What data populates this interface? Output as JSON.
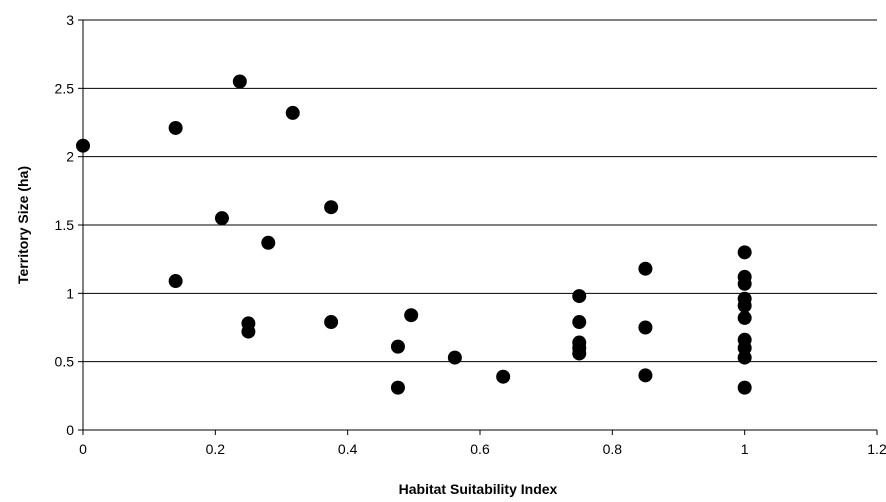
{
  "chart_data": {
    "type": "scatter",
    "title": "",
    "xlabel": "Habitat Suitability Index",
    "ylabel": "Territory Size (ha)",
    "xlim": [
      0,
      1.2
    ],
    "ylim": [
      0,
      3
    ],
    "x_ticks": [
      "0",
      "0.2",
      "0.4",
      "0.6",
      "0.8",
      "1",
      "1.2"
    ],
    "y_ticks": [
      "0",
      "0.5",
      "1",
      "1.5",
      "2",
      "2.5",
      "3"
    ],
    "grid": "horizontal",
    "legend": "none",
    "marker_color": "#000000",
    "points": [
      {
        "x": 0.0,
        "y": 2.08
      },
      {
        "x": 0.14,
        "y": 2.21
      },
      {
        "x": 0.14,
        "y": 1.09
      },
      {
        "x": 0.21,
        "y": 1.55
      },
      {
        "x": 0.237,
        "y": 2.55
      },
      {
        "x": 0.25,
        "y": 0.78
      },
      {
        "x": 0.25,
        "y": 0.72
      },
      {
        "x": 0.28,
        "y": 1.37
      },
      {
        "x": 0.317,
        "y": 2.32
      },
      {
        "x": 0.375,
        "y": 1.63
      },
      {
        "x": 0.375,
        "y": 0.79
      },
      {
        "x": 0.476,
        "y": 0.61
      },
      {
        "x": 0.476,
        "y": 0.31
      },
      {
        "x": 0.496,
        "y": 0.84
      },
      {
        "x": 0.562,
        "y": 0.53
      },
      {
        "x": 0.635,
        "y": 0.39
      },
      {
        "x": 0.75,
        "y": 0.98
      },
      {
        "x": 0.75,
        "y": 0.79
      },
      {
        "x": 0.75,
        "y": 0.64
      },
      {
        "x": 0.75,
        "y": 0.6
      },
      {
        "x": 0.75,
        "y": 0.56
      },
      {
        "x": 0.85,
        "y": 1.18
      },
      {
        "x": 0.85,
        "y": 0.75
      },
      {
        "x": 0.85,
        "y": 0.4
      },
      {
        "x": 1.0,
        "y": 1.3
      },
      {
        "x": 1.0,
        "y": 1.12
      },
      {
        "x": 1.0,
        "y": 1.07
      },
      {
        "x": 1.0,
        "y": 0.96
      },
      {
        "x": 1.0,
        "y": 0.91
      },
      {
        "x": 1.0,
        "y": 0.82
      },
      {
        "x": 1.0,
        "y": 0.66
      },
      {
        "x": 1.0,
        "y": 0.6
      },
      {
        "x": 1.0,
        "y": 0.53
      },
      {
        "x": 1.0,
        "y": 0.31
      }
    ]
  }
}
